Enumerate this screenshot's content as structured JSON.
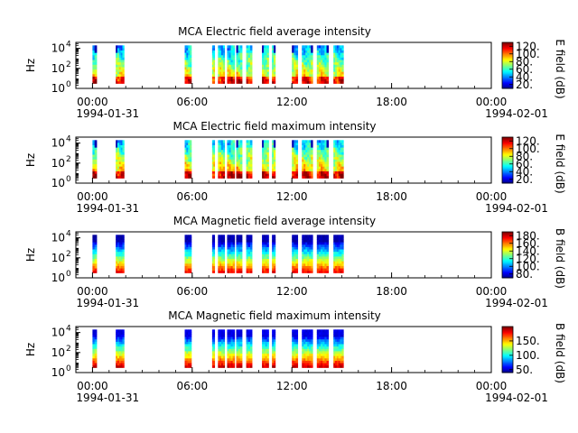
{
  "chart_data": [
    {
      "type": "heatmap",
      "title": "MCA  Electric field average intensity",
      "ylabel": "Hz",
      "colorbar_label": "E field (dB)",
      "colorbar_ticks": [
        "20.",
        "40.",
        "60.",
        "80.",
        "100.",
        "120."
      ],
      "colorbar_range": [
        10,
        130
      ],
      "ylim_exp": [
        0,
        4.6
      ],
      "yticks_exp": [
        0,
        2,
        4
      ],
      "kind": "E",
      "mode": "avg"
    },
    {
      "type": "heatmap",
      "title": "MCA  Electric field maximum intensity",
      "ylabel": "Hz",
      "colorbar_label": "E field (dB)",
      "colorbar_ticks": [
        "20.",
        "40.",
        "60.",
        "80.",
        "100.",
        "120."
      ],
      "colorbar_range": [
        10,
        130
      ],
      "ylim_exp": [
        0,
        4.6
      ],
      "yticks_exp": [
        0,
        2,
        4
      ],
      "kind": "E",
      "mode": "max"
    },
    {
      "type": "heatmap",
      "title": "MCA  Magnetic field average intensity",
      "ylabel": "Hz",
      "colorbar_label": "B field (dB)",
      "colorbar_ticks": [
        "80.",
        "100.",
        "120.",
        "140.",
        "160.",
        "180."
      ],
      "colorbar_range": [
        70,
        190
      ],
      "ylim_exp": [
        0,
        4.6
      ],
      "yticks_exp": [
        0,
        2,
        4
      ],
      "kind": "B",
      "mode": "avg"
    },
    {
      "type": "heatmap",
      "title": "MCA  Magnetic field maximum intensity",
      "ylabel": "Hz",
      "colorbar_label": "B field (dB)",
      "colorbar_ticks": [
        "50.",
        "100.",
        "150."
      ],
      "colorbar_range": [
        40,
        200
      ],
      "ylim_exp": [
        0,
        4.6
      ],
      "yticks_exp": [
        0,
        2,
        4
      ],
      "kind": "B",
      "mode": "max"
    }
  ],
  "time_axis": {
    "range_hours": [
      -1,
      24
    ],
    "major_ticks": [
      {
        "hour": 0,
        "label": "00:00"
      },
      {
        "hour": 6,
        "label": "06:00"
      },
      {
        "hour": 12,
        "label": "12:00"
      },
      {
        "hour": 18,
        "label": "18:00"
      },
      {
        "hour": 24,
        "label": "00:00"
      }
    ],
    "start_date": "1994-01-31",
    "end_date": "1994-02-01",
    "minor_tick_hours": 1
  },
  "data_intervals_hours": [
    [
      0.0,
      0.25
    ],
    [
      1.4,
      1.9
    ],
    [
      5.55,
      5.95
    ],
    [
      7.2,
      7.35
    ],
    [
      7.55,
      7.95
    ],
    [
      8.1,
      8.55
    ],
    [
      8.65,
      9.0
    ],
    [
      9.25,
      9.6
    ],
    [
      10.2,
      10.6
    ],
    [
      10.8,
      11.0
    ],
    [
      12.0,
      12.35
    ],
    [
      12.6,
      13.25
    ],
    [
      13.5,
      14.2
    ],
    [
      14.5,
      15.1
    ]
  ]
}
